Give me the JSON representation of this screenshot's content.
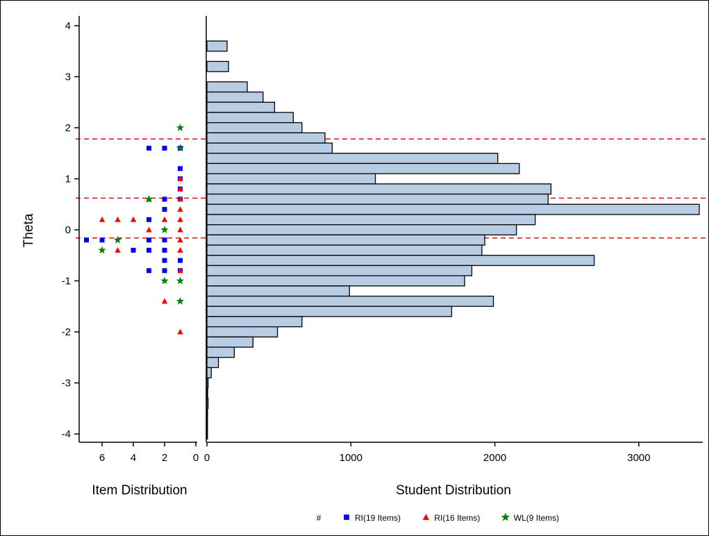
{
  "chart_data": {
    "type": "bar",
    "y_axis": {
      "label": "Theta",
      "ticks": [
        4,
        3,
        2,
        1,
        0,
        -1,
        -2,
        -3,
        -4
      ],
      "range": [
        -4.1,
        4.1
      ]
    },
    "item_panel": {
      "xlabel": "Item Distribution",
      "x_ticks": [
        6,
        4,
        2,
        0
      ],
      "range": [
        7.5,
        0
      ],
      "series": [
        {
          "name": "RI(19 Items)",
          "marker": "square",
          "color": "#0000ff",
          "points": [
            {
              "theta": 1.6,
              "count": 1
            },
            {
              "theta": 1.6,
              "count": 2
            },
            {
              "theta": 1.6,
              "count": 3
            },
            {
              "theta": 1.2,
              "count": 1
            },
            {
              "theta": 1.0,
              "count": 1
            },
            {
              "theta": 0.8,
              "count": 1
            },
            {
              "theta": 0.6,
              "count": 1
            },
            {
              "theta": 0.6,
              "count": 2
            },
            {
              "theta": 0.4,
              "count": 2
            },
            {
              "theta": 0.2,
              "count": 3
            },
            {
              "theta": -0.2,
              "count": 7
            },
            {
              "theta": -0.2,
              "count": 6
            },
            {
              "theta": -0.2,
              "count": 3
            },
            {
              "theta": -0.2,
              "count": 2
            },
            {
              "theta": -0.4,
              "count": 4
            },
            {
              "theta": -0.4,
              "count": 3
            },
            {
              "theta": -0.4,
              "count": 2
            },
            {
              "theta": -0.6,
              "count": 2
            },
            {
              "theta": -0.6,
              "count": 1
            },
            {
              "theta": -0.8,
              "count": 3
            },
            {
              "theta": -0.8,
              "count": 2
            },
            {
              "theta": -0.8,
              "count": 1
            }
          ]
        },
        {
          "name": "RI(16 Items)",
          "marker": "triangle",
          "color": "#ff0000",
          "points": [
            {
              "theta": 1.0,
              "count": 1
            },
            {
              "theta": 0.8,
              "count": 1
            },
            {
              "theta": 0.6,
              "count": 1
            },
            {
              "theta": 0.6,
              "count": 3
            },
            {
              "theta": 0.4,
              "count": 1
            },
            {
              "theta": 0.2,
              "count": 6
            },
            {
              "theta": 0.2,
              "count": 5
            },
            {
              "theta": 0.2,
              "count": 4
            },
            {
              "theta": 0.2,
              "count": 2
            },
            {
              "theta": 0.2,
              "count": 1
            },
            {
              "theta": 0.0,
              "count": 3
            },
            {
              "theta": 0.0,
              "count": 1
            },
            {
              "theta": -0.2,
              "count": 1
            },
            {
              "theta": -0.4,
              "count": 5
            },
            {
              "theta": -0.4,
              "count": 1
            },
            {
              "theta": -0.8,
              "count": 1
            },
            {
              "theta": -1.4,
              "count": 2
            },
            {
              "theta": -2.0,
              "count": 1
            }
          ]
        },
        {
          "name": "WL(9 Items)",
          "marker": "star",
          "color": "#008000",
          "points": [
            {
              "theta": 2.0,
              "count": 1
            },
            {
              "theta": 1.6,
              "count": 1
            },
            {
              "theta": 0.6,
              "count": 3
            },
            {
              "theta": 0.0,
              "count": 2
            },
            {
              "theta": -0.2,
              "count": 5
            },
            {
              "theta": -0.4,
              "count": 6
            },
            {
              "theta": -1.0,
              "count": 2
            },
            {
              "theta": -1.0,
              "count": 1
            },
            {
              "theta": -1.4,
              "count": 1
            }
          ]
        }
      ]
    },
    "student_panel": {
      "xlabel": "Student Distribution",
      "x_ticks": [
        0,
        1000,
        2000,
        3000
      ],
      "range": [
        0,
        3450
      ],
      "bar_color": "#b8cde4",
      "bin_height": 0.2,
      "bins": [
        {
          "theta": 3.6,
          "count": 140
        },
        {
          "theta": 3.2,
          "count": 150
        },
        {
          "theta": 2.8,
          "count": 280
        },
        {
          "theta": 2.6,
          "count": 390
        },
        {
          "theta": 2.4,
          "count": 470
        },
        {
          "theta": 2.2,
          "count": 600
        },
        {
          "theta": 2.0,
          "count": 660
        },
        {
          "theta": 1.8,
          "count": 820
        },
        {
          "theta": 1.6,
          "count": 870
        },
        {
          "theta": 1.4,
          "count": 2020
        },
        {
          "theta": 1.2,
          "count": 2170
        },
        {
          "theta": 1.0,
          "count": 1170
        },
        {
          "theta": 0.8,
          "count": 2390
        },
        {
          "theta": 0.6,
          "count": 2370
        },
        {
          "theta": 0.4,
          "count": 3420
        },
        {
          "theta": 0.2,
          "count": 2280
        },
        {
          "theta": 0.0,
          "count": 2150
        },
        {
          "theta": -0.2,
          "count": 1930
        },
        {
          "theta": -0.4,
          "count": 1910
        },
        {
          "theta": -0.6,
          "count": 2690
        },
        {
          "theta": -0.8,
          "count": 1840
        },
        {
          "theta": -1.0,
          "count": 1790
        },
        {
          "theta": -1.2,
          "count": 990
        },
        {
          "theta": -1.4,
          "count": 1990
        },
        {
          "theta": -1.6,
          "count": 1700
        },
        {
          "theta": -1.8,
          "count": 660
        },
        {
          "theta": -2.0,
          "count": 490
        },
        {
          "theta": -2.2,
          "count": 320
        },
        {
          "theta": -2.4,
          "count": 190
        },
        {
          "theta": -2.6,
          "count": 80
        },
        {
          "theta": -2.8,
          "count": 30
        },
        {
          "theta": -3.0,
          "count": 8
        },
        {
          "theta": -3.2,
          "count": 5
        },
        {
          "theta": -3.4,
          "count": 8
        },
        {
          "theta": -3.6,
          "count": 4
        },
        {
          "theta": -3.8,
          "count": 3
        },
        {
          "theta": -4.0,
          "count": 2
        }
      ]
    },
    "reference_lines": {
      "theta": [
        1.78,
        0.62,
        -0.16
      ],
      "color": "#ff0000",
      "style": "dashed"
    },
    "legend": {
      "placement": "bottom-center",
      "items": [
        {
          "symbol": "#",
          "label": "",
          "color": "#999999"
        },
        {
          "symbol": "square",
          "label": "RI(19 Items)",
          "color": "#0000ff"
        },
        {
          "symbol": "triangle",
          "label": "RI(16 Items)",
          "color": "#ff0000"
        },
        {
          "symbol": "star",
          "label": "WL(9 Items)",
          "color": "#008000"
        }
      ]
    }
  }
}
